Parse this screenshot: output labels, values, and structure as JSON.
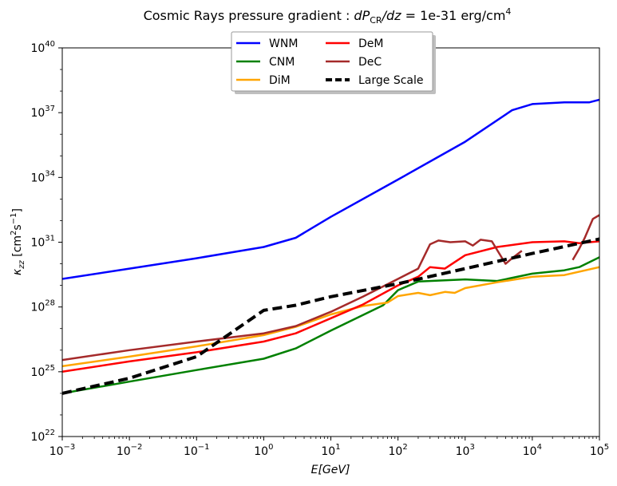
{
  "chart_data": {
    "type": "line",
    "title": "Cosmic Rays pressure gradient : dP_CR/dz = 1e-31 erg/cm^4",
    "title_parts": {
      "prefix": "Cosmic Rays pressure gradient : ",
      "d1": "dP",
      "sub": "CR",
      "d2": "/dz",
      "eq": " = 1e-31 erg/cm",
      "sup": "4"
    },
    "xlabel": "E[GeV]",
    "xlabel_parts": {
      "var": "E",
      "unit": "[GeV]"
    },
    "ylabel": "κzz [cm²s⁻¹]",
    "ylabel_parts": {
      "sym": "κ",
      "sub": "zz",
      "unit_open": " [cm",
      "sup1": "2",
      "mid": "s",
      "sup2": "−1",
      "unit_close": "]"
    },
    "x_scale": "log",
    "y_scale": "log",
    "xlim": [
      0.001,
      100000
    ],
    "ylim": [
      1e+22,
      1e+40
    ],
    "xticks": [
      {
        "value": 0.001,
        "base": "10",
        "exp": "−3"
      },
      {
        "value": 0.01,
        "base": "10",
        "exp": "−2"
      },
      {
        "value": 0.1,
        "base": "10",
        "exp": "−1"
      },
      {
        "value": 1,
        "base": "10",
        "exp": "0"
      },
      {
        "value": 10,
        "base": "10",
        "exp": "1"
      },
      {
        "value": 100,
        "base": "10",
        "exp": "2"
      },
      {
        "value": 1000,
        "base": "10",
        "exp": "3"
      },
      {
        "value": 10000,
        "base": "10",
        "exp": "4"
      },
      {
        "value": 100000,
        "base": "10",
        "exp": "5"
      }
    ],
    "yticks": [
      {
        "value": 1e+22,
        "base": "10",
        "exp": "22"
      },
      {
        "value": 1e+25,
        "base": "10",
        "exp": "25"
      },
      {
        "value": 1e+28,
        "base": "10",
        "exp": "28"
      },
      {
        "value": 1e+31,
        "base": "10",
        "exp": "31"
      },
      {
        "value": 1e+34,
        "base": "10",
        "exp": "34"
      },
      {
        "value": 1e+37,
        "base": "10",
        "exp": "37"
      },
      {
        "value": 1e+40,
        "base": "10",
        "exp": "40"
      }
    ],
    "legend_placement": "upper-center",
    "legend_columns": 2,
    "grid": false,
    "series": [
      {
        "name": "WNM",
        "color": "#0000ff",
        "style": "solid",
        "points": [
          [
            0.001,
            2e+29
          ],
          [
            0.01,
            6e+29
          ],
          [
            0.1,
            1.8e+30
          ],
          [
            1,
            6e+30
          ],
          [
            3,
            1.6e+31
          ],
          [
            10,
            1.5e+32
          ],
          [
            100,
            8e+33
          ],
          [
            1000,
            4.5e+35
          ],
          [
            5000,
            1.3e+37
          ],
          [
            10000,
            2.5e+37
          ],
          [
            30000,
            3e+37
          ],
          [
            70000,
            3e+37
          ],
          [
            100000,
            4e+37
          ]
        ]
      },
      {
        "name": "CNM",
        "color": "#008000",
        "style": "solid",
        "points": [
          [
            0.001,
            1e+24
          ],
          [
            0.01,
            3.5e+24
          ],
          [
            0.1,
            1.2e+25
          ],
          [
            1,
            4e+25
          ],
          [
            3,
            1.2e+26
          ],
          [
            10,
            8e+26
          ],
          [
            60,
            1.2e+28
          ],
          [
            100,
            6e+28
          ],
          [
            200,
            1.5e+29
          ],
          [
            1000,
            1.9e+29
          ],
          [
            3000,
            1.6e+29
          ],
          [
            10000,
            3.5e+29
          ],
          [
            30000,
            5e+29
          ],
          [
            50000,
            7e+29
          ],
          [
            100000,
            2e+30
          ]
        ]
      },
      {
        "name": "DiM",
        "color": "#ffa500",
        "style": "solid",
        "points": [
          [
            0.001,
            1.8e+25
          ],
          [
            0.01,
            5e+25
          ],
          [
            0.1,
            1.5e+26
          ],
          [
            1,
            5e+26
          ],
          [
            3,
            1.2e+27
          ],
          [
            10,
            4.5e+27
          ],
          [
            30,
            1.1e+28
          ],
          [
            70,
            1.6e+28
          ],
          [
            100,
            3.2e+28
          ],
          [
            200,
            4.5e+28
          ],
          [
            300,
            3.5e+28
          ],
          [
            500,
            5e+28
          ],
          [
            700,
            4.5e+28
          ],
          [
            1000,
            7.5e+28
          ],
          [
            3000,
            1.4e+29
          ],
          [
            10000,
            2.5e+29
          ],
          [
            30000,
            3e+29
          ],
          [
            100000,
            7e+29
          ]
        ]
      },
      {
        "name": "DeM",
        "color": "#ff0000",
        "style": "solid",
        "points": [
          [
            0.001,
            1e+25
          ],
          [
            0.01,
            3e+25
          ],
          [
            0.1,
            8e+25
          ],
          [
            1,
            2.5e+26
          ],
          [
            3,
            6e+26
          ],
          [
            10,
            3e+27
          ],
          [
            30,
            1.3e+28
          ],
          [
            100,
            1e+29
          ],
          [
            200,
            2.5e+29
          ],
          [
            300,
            7e+29
          ],
          [
            500,
            6e+29
          ],
          [
            700,
            1.2e+30
          ],
          [
            1000,
            2.5e+30
          ],
          [
            3000,
            6e+30
          ],
          [
            10000,
            1e+31
          ],
          [
            30000,
            1.1e+31
          ],
          [
            50000,
            9e+30
          ],
          [
            100000,
            1.1e+31
          ]
        ]
      },
      {
        "name": "DeC",
        "color": "#a52a2a",
        "style": "solid",
        "points": [
          [
            0.001,
            3.5e+25
          ],
          [
            0.01,
            1e+26
          ],
          [
            0.1,
            2.5e+26
          ],
          [
            1,
            6e+26
          ],
          [
            3,
            1.3e+27
          ],
          [
            10,
            6e+27
          ],
          [
            30,
            3e+28
          ],
          [
            100,
            2e+29
          ],
          [
            200,
            6e+29
          ],
          [
            300,
            8e+30
          ],
          [
            400,
            1.2e+31
          ],
          [
            600,
            1e+31
          ],
          [
            1000,
            1.1e+31
          ],
          [
            1300,
            7e+30
          ],
          [
            1700,
            1.3e+31
          ],
          [
            2500,
            1.1e+31
          ],
          [
            4000,
            1e+30
          ],
          [
            5000,
            1.8e+30
          ],
          [
            7000,
            4e+30
          ]
        ],
        "points2": [
          [
            40000,
            1.5e+30
          ],
          [
            50000,
            5e+30
          ],
          [
            60000,
            1.5e+31
          ],
          [
            80000,
            1.2e+32
          ],
          [
            100000,
            1.8e+32
          ]
        ]
      },
      {
        "name": "Large Scale",
        "color": "#000000",
        "style": "dashed",
        "points": [
          [
            0.001,
            1e+24
          ],
          [
            0.01,
            5e+24
          ],
          [
            0.1,
            5e+25
          ],
          [
            1,
            7e+27
          ],
          [
            3,
            1.2e+28
          ],
          [
            10,
            3e+28
          ],
          [
            100,
            1.2e+29
          ],
          [
            1000,
            6e+29
          ],
          [
            10000,
            3e+30
          ],
          [
            100000,
            1.4e+31
          ]
        ]
      }
    ]
  }
}
